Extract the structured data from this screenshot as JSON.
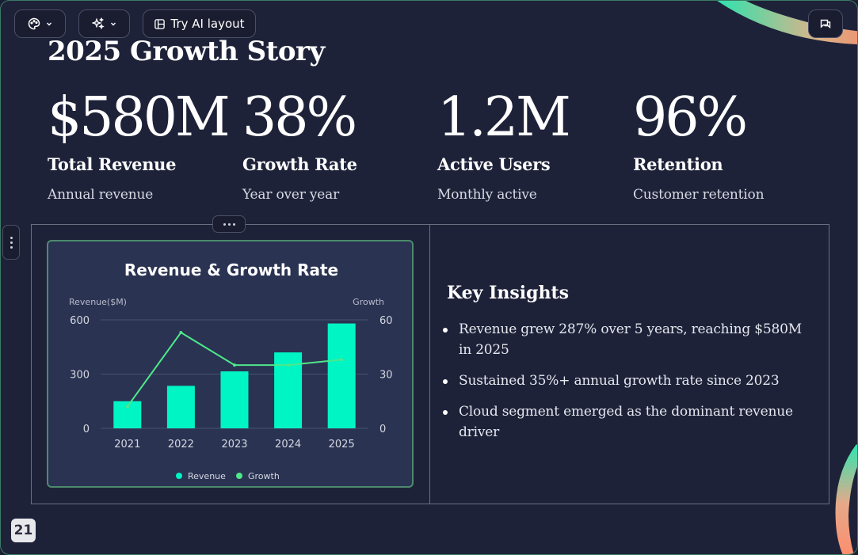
{
  "toolbar": {
    "theme_button": {
      "icon": "palette-icon"
    },
    "ai_button": {
      "icon": "sparkle-icon"
    },
    "try_ai_layout_label": "Try AI layout",
    "comment_button": {
      "icon": "comment-icon"
    }
  },
  "slide": {
    "title": "2025 Growth Story",
    "page_number": "21",
    "stats": [
      {
        "value": "$580M",
        "label": "Total Revenue",
        "sub": "Annual revenue"
      },
      {
        "value": "38%",
        "label": "Growth Rate",
        "sub": "Year over year"
      },
      {
        "value": "1.2M",
        "label": "Active Users",
        "sub": "Monthly active"
      },
      {
        "value": "96%",
        "label": "Retention",
        "sub": "Customer retention"
      }
    ],
    "insights": {
      "title": "Key Insights",
      "items": [
        "Revenue grew 287% over 5 years, reaching $580M in 2025",
        "Sustained 35%+ annual growth rate since 2023",
        "Cloud segment emerged as the dominant revenue driver"
      ]
    }
  },
  "colors": {
    "accent": "#00f5c4",
    "growth_line": "#4ee88a",
    "card_bg": "#2a3352",
    "slide_bg": "#1e2239"
  },
  "chart_data": {
    "type": "bar",
    "title": "Revenue & Growth Rate",
    "categories": [
      "2021",
      "2022",
      "2023",
      "2024",
      "2025"
    ],
    "ylabel": "Revenue($M)",
    "y2label": "Growth",
    "ylim": [
      0,
      600
    ],
    "y2lim": [
      0,
      60
    ],
    "yticks": [
      "0",
      "300",
      "600"
    ],
    "y2ticks": [
      "0",
      "30",
      "60"
    ],
    "series": [
      {
        "name": "Revenue",
        "type": "bar",
        "axis": "left",
        "values": [
          150,
          235,
          315,
          420,
          580
        ]
      },
      {
        "name": "Growth",
        "type": "line",
        "axis": "right",
        "values": [
          12,
          53,
          35,
          35,
          38
        ]
      }
    ],
    "legend": "bottom",
    "grid": true
  }
}
